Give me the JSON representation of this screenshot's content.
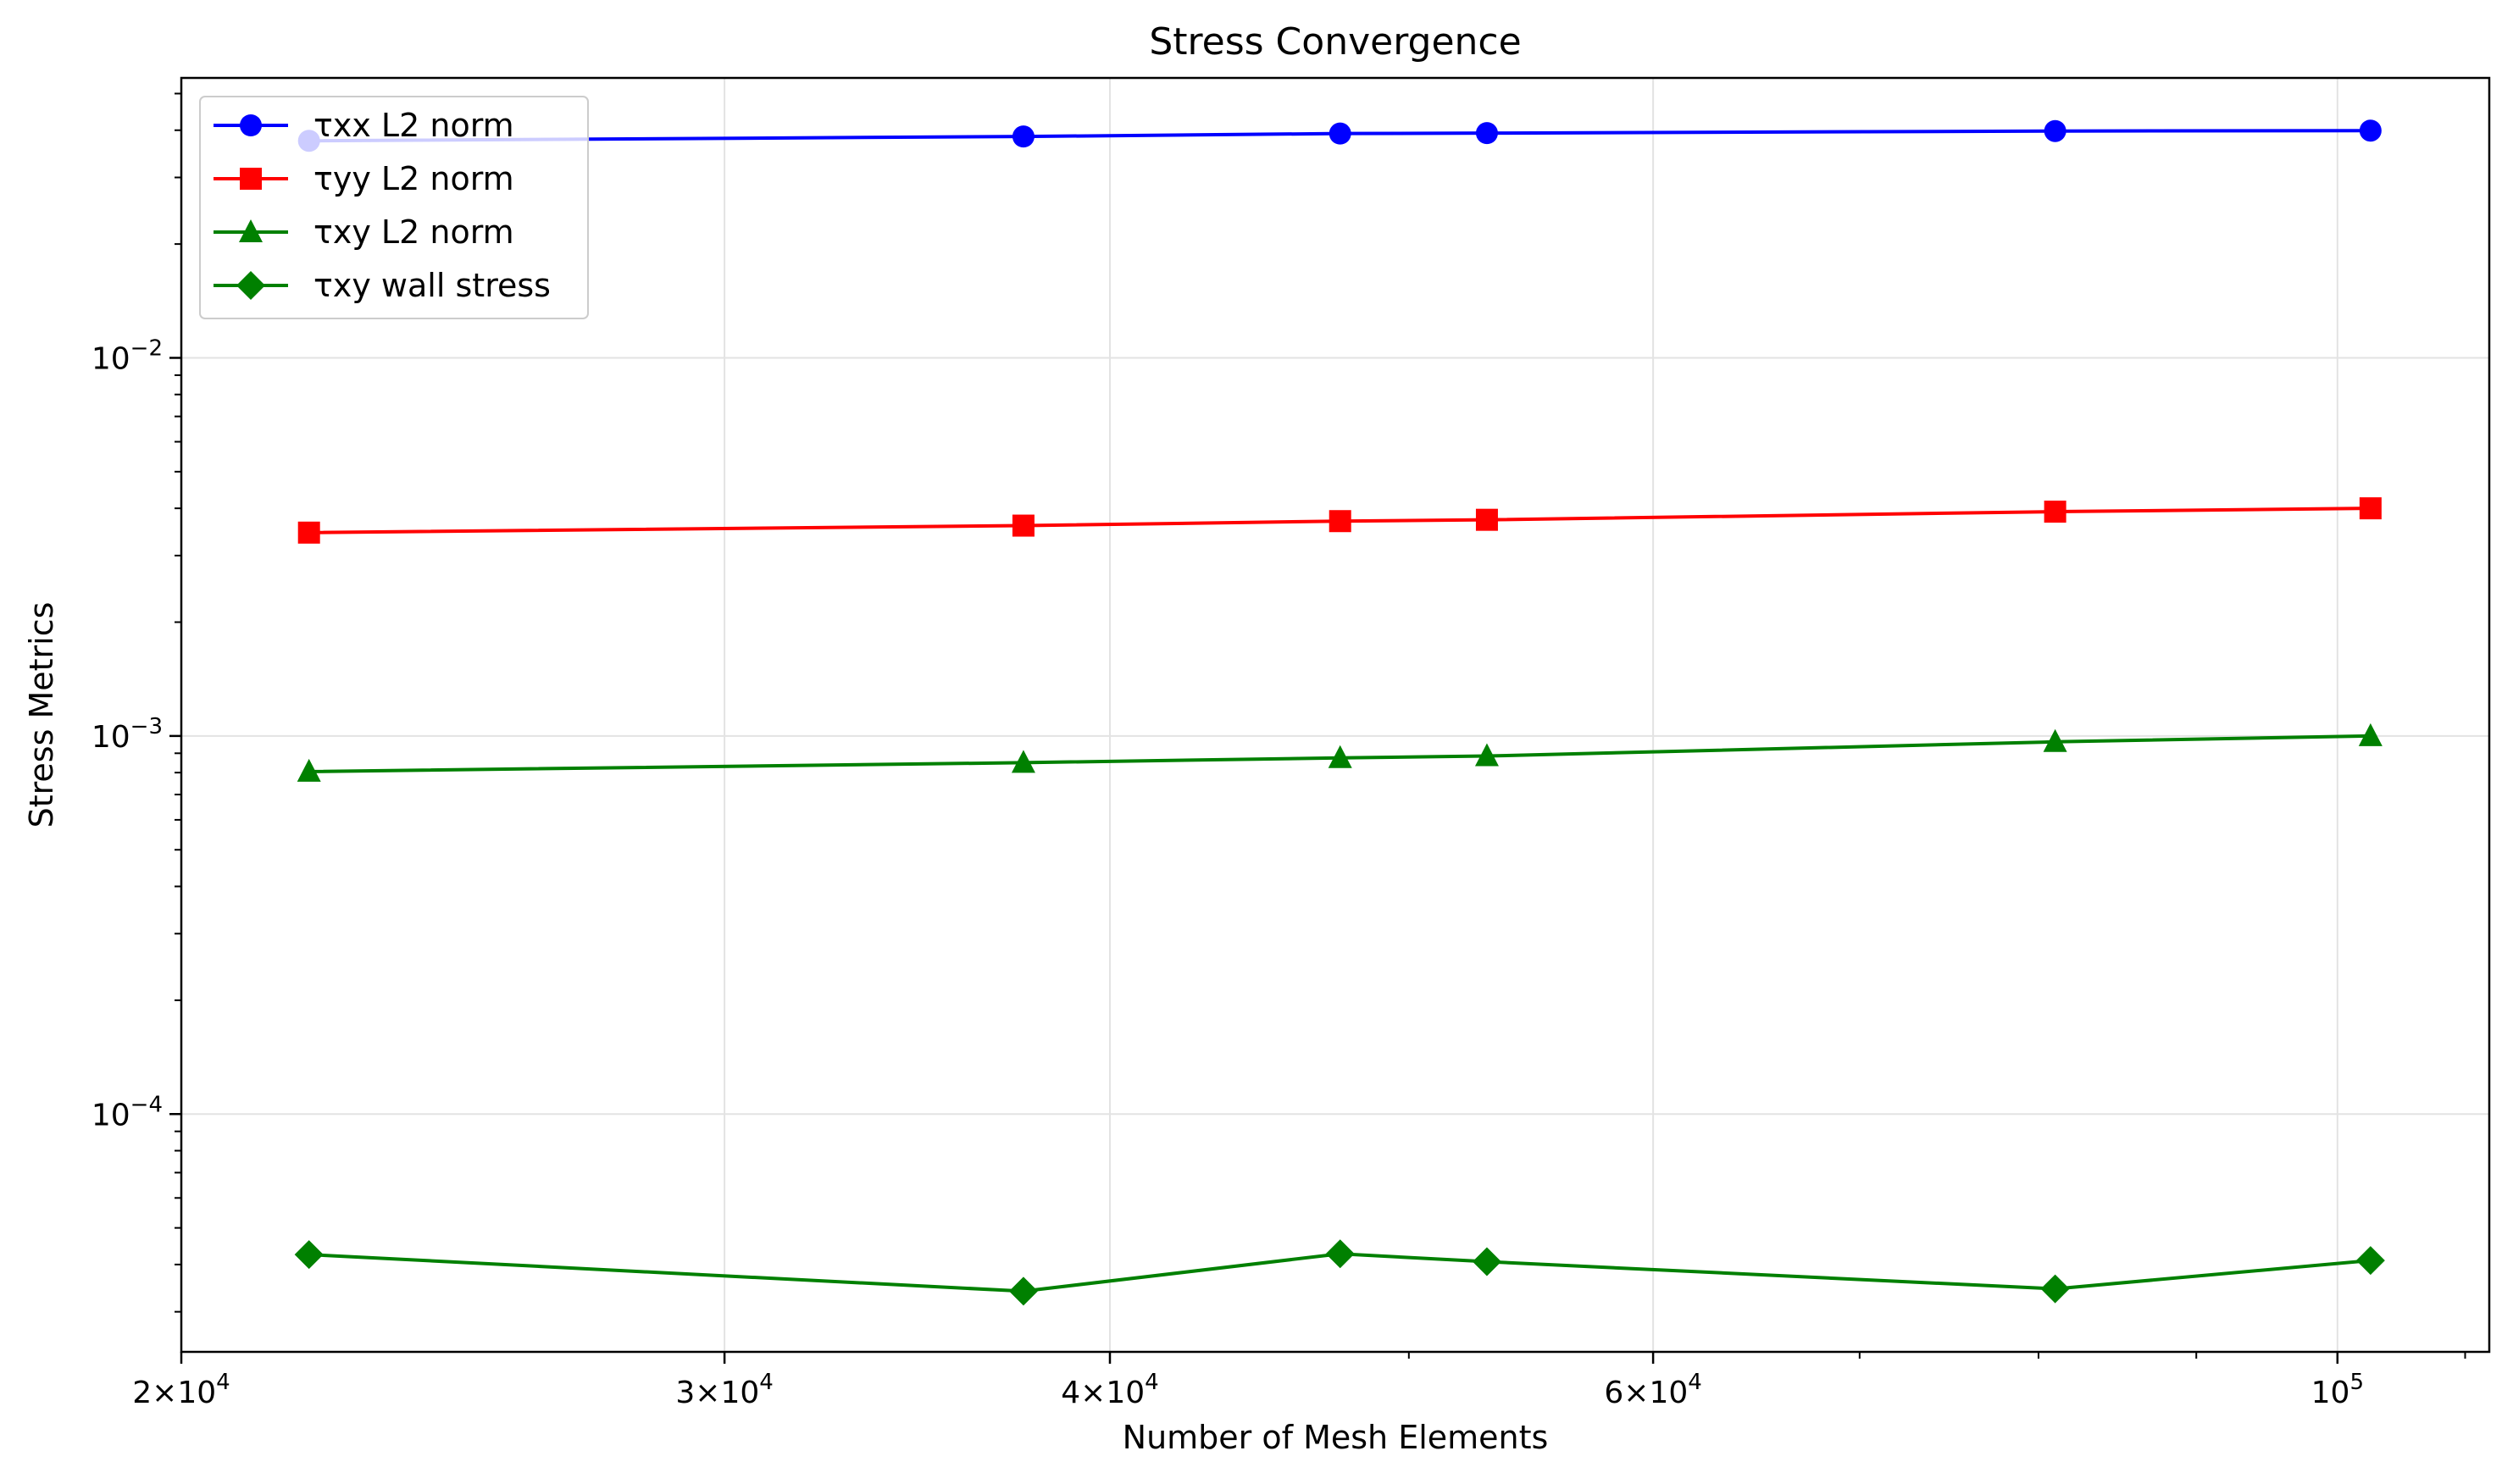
{
  "chart_data": {
    "type": "line",
    "title": "Stress Convergence",
    "xlabel": "Number of Mesh Elements",
    "ylabel": "Stress Metrics",
    "xscale": "log",
    "yscale": "log",
    "xlim": [
      20000,
      112000
    ],
    "ylim": [
      2.35e-05,
      0.055
    ],
    "grid": true,
    "legend_position": "top-left",
    "x": [
      22000,
      37500,
      47500,
      53000,
      81000,
      102500
    ],
    "x_tick_labels": [
      {
        "value": 20000,
        "base": "2×10",
        "exp": "4"
      },
      {
        "value": 30000,
        "base": "3×10",
        "exp": "4"
      },
      {
        "value": 40000,
        "base": "4×10",
        "exp": "4"
      },
      {
        "value": 60000,
        "base": "6×10",
        "exp": "4"
      },
      {
        "value": 100000,
        "base": "10",
        "exp": "5"
      }
    ],
    "y_tick_labels": [
      {
        "value": 0.01,
        "base": "10",
        "exp": "−2"
      },
      {
        "value": 0.001,
        "base": "10",
        "exp": "−3"
      },
      {
        "value": 0.0001,
        "base": "10",
        "exp": "−4"
      }
    ],
    "series": [
      {
        "name": "τxx L2 norm",
        "marker": "circle",
        "color": "#0000ff",
        "values": [
          0.0375,
          0.0385,
          0.0392,
          0.0393,
          0.0398,
          0.0399
        ]
      },
      {
        "name": "τyy L2 norm",
        "marker": "square",
        "color": "#ff0000",
        "values": [
          0.00345,
          0.0036,
          0.0037,
          0.00373,
          0.00392,
          0.004
        ]
      },
      {
        "name": "τxy L2 norm",
        "marker": "triangle",
        "color": "#008000",
        "values": [
          0.000805,
          0.00085,
          0.000875,
          0.000885,
          0.000965,
          0.001
        ]
      },
      {
        "name": "τxy wall stress",
        "marker": "diamond",
        "color": "#008000",
        "values": [
          4.25e-05,
          3.4e-05,
          4.27e-05,
          4.07e-05,
          3.45e-05,
          4.1e-05
        ]
      }
    ]
  }
}
